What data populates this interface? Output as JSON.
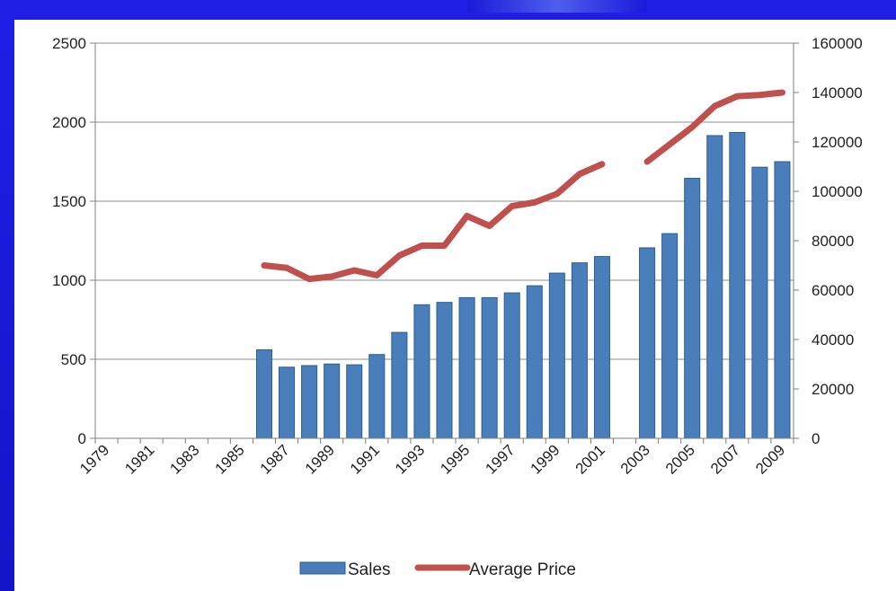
{
  "chart_data": {
    "type": "bar",
    "x": [
      1979,
      1980,
      1981,
      1982,
      1983,
      1984,
      1985,
      1986,
      1987,
      1988,
      1989,
      1990,
      1991,
      1992,
      1993,
      1994,
      1995,
      1996,
      1997,
      1998,
      1999,
      2000,
      2001,
      2002,
      2003,
      2004,
      2005,
      2006,
      2007,
      2008,
      2009
    ],
    "x_tick_labels": [
      "1979",
      "1981",
      "1983",
      "1985",
      "1987",
      "1989",
      "1991",
      "1993",
      "1995",
      "1997",
      "1999",
      "2001",
      "2003",
      "2005",
      "2007",
      "2009"
    ],
    "series": [
      {
        "name": "Sales",
        "type": "bar",
        "axis": "left",
        "color": "#4a7ebb",
        "values": [
          null,
          null,
          null,
          null,
          null,
          null,
          null,
          560,
          450,
          460,
          470,
          465,
          530,
          670,
          845,
          860,
          890,
          890,
          920,
          965,
          1045,
          1110,
          1150,
          null,
          1205,
          1295,
          1645,
          1915,
          1935,
          1715,
          1750
        ]
      },
      {
        "name": "Average Price",
        "type": "line",
        "axis": "right",
        "color": "#c0504d",
        "values": [
          null,
          null,
          null,
          null,
          null,
          null,
          null,
          70000,
          69000,
          64500,
          65500,
          68000,
          66000,
          74000,
          78000,
          78000,
          90000,
          86000,
          94000,
          95500,
          99000,
          107000,
          111000,
          null,
          112000,
          119000,
          126000,
          134500,
          138500,
          139000,
          140000
        ]
      }
    ],
    "y_left": {
      "ylim": [
        0,
        2500
      ],
      "ticks": [
        "0",
        "500",
        "1000",
        "1500",
        "2000",
        "2500"
      ]
    },
    "y_right": {
      "ylim": [
        0,
        160000
      ],
      "ticks": [
        "0",
        "20000",
        "40000",
        "60000",
        "80000",
        "100000",
        "120000",
        "140000",
        "160000"
      ]
    },
    "grid": true,
    "legend": {
      "placement": "bottom-center",
      "entries": [
        "Sales",
        "Average Price"
      ]
    }
  }
}
